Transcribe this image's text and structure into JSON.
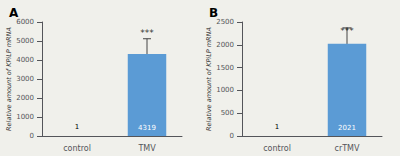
{
  "chart_data": [
    {
      "type": "bar",
      "title": "A",
      "categories": [
        "control",
        "TMV"
      ],
      "values": [
        1,
        4319
      ],
      "errors": [
        0,
        800
      ],
      "color": "#5B9BD5",
      "ylabel": "Relative amount of KPiLP mRNA",
      "ylim": [
        0,
        6000
      ],
      "yticks": [
        0,
        1000,
        2000,
        3000,
        4000,
        5000,
        6000
      ],
      "data_labels": true,
      "grid": false,
      "annotations": [
        {
          "text": "***",
          "x": "TMV",
          "y": 5200
        }
      ]
    },
    {
      "type": "bar",
      "title": "B",
      "categories": [
        "control",
        "crTMV"
      ],
      "values": [
        1,
        2021
      ],
      "errors": [
        0,
        350
      ],
      "color": "#5B9BD5",
      "ylabel": "Relative amount of KPiLP mRNA",
      "ylim": [
        0,
        2500
      ],
      "yticks": [
        0,
        500,
        1000,
        1500,
        2000,
        2500
      ],
      "data_labels": true,
      "grid": false,
      "annotations": [
        {
          "text": "***",
          "x": "crTMV",
          "y": 2200
        }
      ]
    }
  ]
}
